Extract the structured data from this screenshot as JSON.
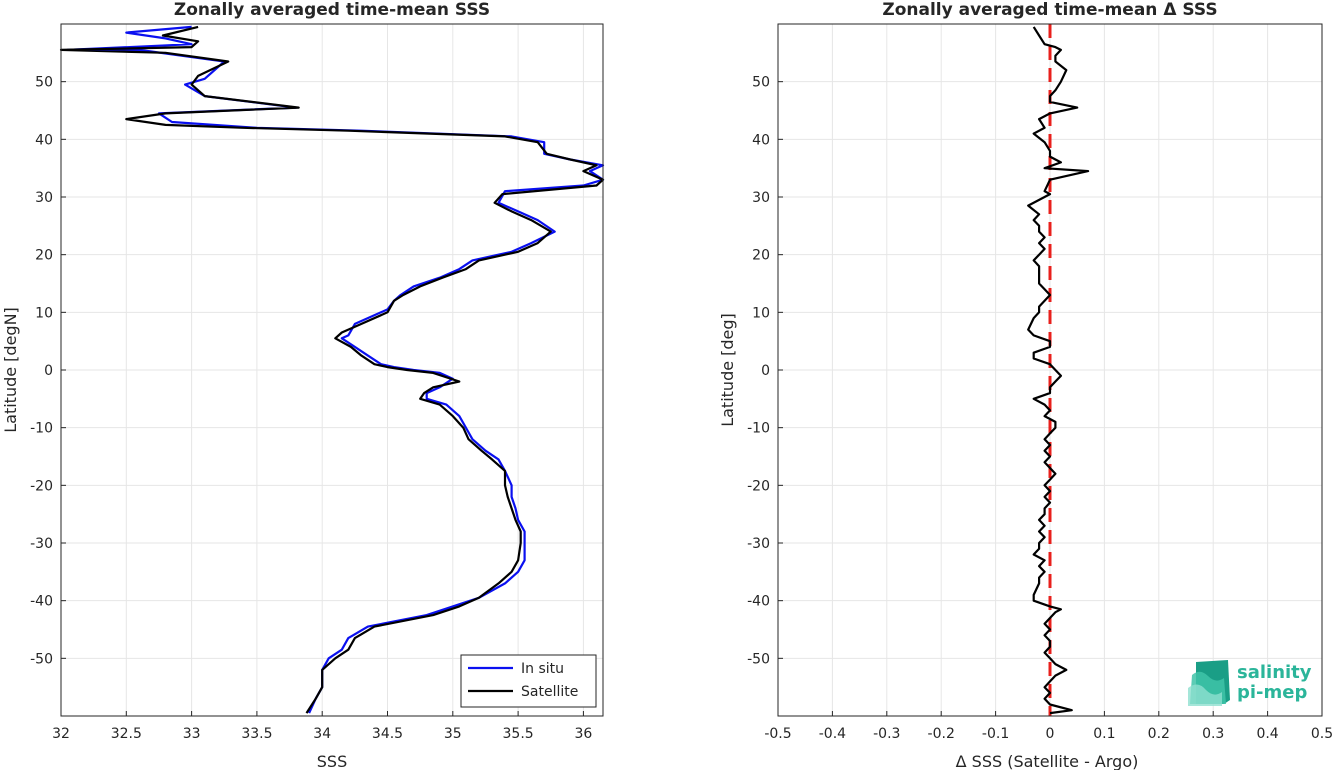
{
  "chart_data": [
    {
      "type": "line",
      "title": "Zonally averaged time-mean SSS",
      "xlabel": "SSS",
      "ylabel": "Latitude [degN]",
      "xlim": [
        32,
        36.15
      ],
      "ylim": [
        -60,
        60
      ],
      "xticks": [
        32,
        32.5,
        33,
        33.5,
        34,
        34.5,
        35,
        35.5,
        36
      ],
      "yticks": [
        -50,
        -40,
        -30,
        -20,
        -10,
        0,
        10,
        20,
        30,
        40,
        50
      ],
      "grid": true,
      "legend_position": "bottom-right",
      "series": [
        {
          "name": "In situ",
          "color": "#0a10f0",
          "points": [
            [
              33.9,
              -59.5
            ],
            [
              33.95,
              -57
            ],
            [
              34.0,
              -55
            ],
            [
              34.0,
              -52
            ],
            [
              34.05,
              -50
            ],
            [
              34.15,
              -48.5
            ],
            [
              34.2,
              -46.5
            ],
            [
              34.35,
              -44.5
            ],
            [
              34.8,
              -42.5
            ],
            [
              35.0,
              -41
            ],
            [
              35.2,
              -39.5
            ],
            [
              35.4,
              -37
            ],
            [
              35.5,
              -35
            ],
            [
              35.55,
              -33
            ],
            [
              35.55,
              -30
            ],
            [
              35.55,
              -28
            ],
            [
              35.5,
              -26
            ],
            [
              35.48,
              -24
            ],
            [
              35.45,
              -22
            ],
            [
              35.45,
              -20
            ],
            [
              35.4,
              -17.5
            ],
            [
              35.35,
              -15.5
            ],
            [
              35.25,
              -14
            ],
            [
              35.15,
              -12
            ],
            [
              35.1,
              -10
            ],
            [
              35.05,
              -8
            ],
            [
              34.95,
              -6
            ],
            [
              34.8,
              -5
            ],
            [
              34.8,
              -4
            ],
            [
              34.9,
              -3
            ],
            [
              35.0,
              -1.5
            ],
            [
              34.9,
              -0.5
            ],
            [
              34.7,
              0
            ],
            [
              34.55,
              0.5
            ],
            [
              34.45,
              1
            ],
            [
              34.35,
              2.5
            ],
            [
              34.25,
              4
            ],
            [
              34.15,
              5.5
            ],
            [
              34.2,
              6
            ],
            [
              34.25,
              8
            ],
            [
              34.5,
              10.5
            ],
            [
              34.55,
              12
            ],
            [
              34.6,
              13
            ],
            [
              34.7,
              14.5
            ],
            [
              34.9,
              16
            ],
            [
              35.05,
              17.5
            ],
            [
              35.15,
              19
            ],
            [
              35.45,
              20.5
            ],
            [
              35.6,
              22
            ],
            [
              35.78,
              24
            ],
            [
              35.65,
              26
            ],
            [
              35.5,
              27.5
            ],
            [
              35.35,
              29
            ],
            [
              35.4,
              31
            ],
            [
              36.0,
              32
            ],
            [
              36.15,
              33
            ],
            [
              36.05,
              34.5
            ],
            [
              36.15,
              35.5
            ],
            [
              35.9,
              36.5
            ],
            [
              35.7,
              37.5
            ],
            [
              35.7,
              39.5
            ],
            [
              35.45,
              40.5
            ],
            [
              34.3,
              41.5
            ],
            [
              33.5,
              42
            ],
            [
              32.85,
              43
            ],
            [
              32.75,
              44.5
            ],
            [
              33.8,
              45.5
            ],
            [
              33.1,
              47.5
            ],
            [
              32.95,
              49.5
            ],
            [
              33.1,
              50.5
            ],
            [
              33.25,
              53.5
            ],
            [
              32.6,
              55.5
            ],
            [
              32.05,
              55.5
            ],
            [
              33.0,
              56.5
            ],
            [
              32.8,
              57.5
            ],
            [
              32.5,
              58.5
            ],
            [
              33.0,
              59.5
            ]
          ]
        },
        {
          "name": "Satellite",
          "color": "#000000",
          "points": [
            [
              33.88,
              -59.5
            ],
            [
              33.95,
              -57
            ],
            [
              34.0,
              -55
            ],
            [
              34.0,
              -52
            ],
            [
              34.1,
              -50
            ],
            [
              34.2,
              -48.5
            ],
            [
              34.25,
              -46.5
            ],
            [
              34.4,
              -44.5
            ],
            [
              34.85,
              -42.5
            ],
            [
              35.05,
              -41
            ],
            [
              35.2,
              -39.5
            ],
            [
              35.35,
              -37
            ],
            [
              35.45,
              -35
            ],
            [
              35.5,
              -33
            ],
            [
              35.52,
              -30
            ],
            [
              35.52,
              -28
            ],
            [
              35.48,
              -26
            ],
            [
              35.45,
              -24
            ],
            [
              35.42,
              -22
            ],
            [
              35.4,
              -20
            ],
            [
              35.4,
              -17.5
            ],
            [
              35.3,
              -15.5
            ],
            [
              35.22,
              -14
            ],
            [
              35.12,
              -12
            ],
            [
              35.08,
              -10
            ],
            [
              35.0,
              -8
            ],
            [
              34.9,
              -6
            ],
            [
              34.75,
              -5
            ],
            [
              34.78,
              -4
            ],
            [
              34.85,
              -3
            ],
            [
              35.05,
              -2
            ],
            [
              34.85,
              -0.5
            ],
            [
              34.65,
              0
            ],
            [
              34.5,
              0.5
            ],
            [
              34.4,
              1
            ],
            [
              34.3,
              2.5
            ],
            [
              34.22,
              4
            ],
            [
              34.1,
              5.5
            ],
            [
              34.15,
              6.5
            ],
            [
              34.3,
              8
            ],
            [
              34.5,
              10
            ],
            [
              34.55,
              12
            ],
            [
              34.62,
              13
            ],
            [
              34.75,
              14.5
            ],
            [
              34.92,
              16
            ],
            [
              35.1,
              17.5
            ],
            [
              35.2,
              19
            ],
            [
              35.5,
              20.5
            ],
            [
              35.65,
              22
            ],
            [
              35.75,
              24
            ],
            [
              35.6,
              26
            ],
            [
              35.45,
              27.5
            ],
            [
              35.32,
              29
            ],
            [
              35.38,
              30.5
            ],
            [
              36.1,
              32
            ],
            [
              36.15,
              33
            ],
            [
              36.0,
              34.5
            ],
            [
              36.1,
              35.5
            ],
            [
              35.9,
              36.5
            ],
            [
              35.72,
              37.5
            ],
            [
              35.65,
              39.5
            ],
            [
              35.4,
              40.5
            ],
            [
              34.2,
              41.5
            ],
            [
              33.4,
              42
            ],
            [
              32.8,
              42.5
            ],
            [
              32.5,
              43.5
            ],
            [
              32.8,
              44.5
            ],
            [
              33.82,
              45.5
            ],
            [
              33.1,
              47.5
            ],
            [
              33.0,
              49.5
            ],
            [
              33.05,
              51
            ],
            [
              33.28,
              53.5
            ],
            [
              32.8,
              55
            ],
            [
              32.0,
              55.5
            ],
            [
              33.0,
              56
            ],
            [
              33.05,
              57
            ],
            [
              32.78,
              58
            ],
            [
              33.05,
              59.5
            ]
          ]
        }
      ]
    },
    {
      "type": "line",
      "title": "Zonally averaged time-mean Δ SSS",
      "xlabel": "Δ SSS (Satellite - Argo)",
      "ylabel": "Latitude [deg]",
      "xlim": [
        -0.5,
        0.5
      ],
      "ylim": [
        -60,
        60
      ],
      "xticks": [
        -0.5,
        -0.4,
        -0.3,
        -0.2,
        -0.1,
        0,
        0.1,
        0.2,
        0.3,
        0.4,
        0.5
      ],
      "yticks": [
        -50,
        -40,
        -30,
        -20,
        -10,
        0,
        10,
        20,
        30,
        40,
        50
      ],
      "grid": true,
      "reference_line": {
        "x": 0,
        "color": "#e8201c",
        "style": "dashed"
      },
      "series": [
        {
          "name": "",
          "color": "#000000",
          "points": [
            [
              0.0,
              -59.5
            ],
            [
              0.04,
              -59
            ],
            [
              0.0,
              -58
            ],
            [
              -0.01,
              -57
            ],
            [
              0.0,
              -56
            ],
            [
              -0.01,
              -55
            ],
            [
              0.0,
              -54
            ],
            [
              0.01,
              -53
            ],
            [
              0.03,
              -52
            ],
            [
              0.01,
              -51
            ],
            [
              0.0,
              -50
            ],
            [
              -0.01,
              -49
            ],
            [
              0.0,
              -48
            ],
            [
              0.0,
              -47
            ],
            [
              -0.01,
              -46
            ],
            [
              0.0,
              -45
            ],
            [
              -0.01,
              -44
            ],
            [
              0.0,
              -43
            ],
            [
              0.01,
              -42
            ],
            [
              0.02,
              -41.5
            ],
            [
              0.0,
              -41
            ],
            [
              -0.03,
              -40
            ],
            [
              -0.03,
              -39
            ],
            [
              -0.02,
              -37
            ],
            [
              -0.02,
              -36
            ],
            [
              -0.01,
              -35
            ],
            [
              -0.02,
              -34
            ],
            [
              -0.01,
              -33
            ],
            [
              -0.03,
              -32
            ],
            [
              -0.02,
              -31
            ],
            [
              -0.02,
              -30
            ],
            [
              -0.01,
              -29
            ],
            [
              -0.02,
              -28
            ],
            [
              -0.01,
              -27
            ],
            [
              -0.02,
              -26
            ],
            [
              -0.01,
              -25
            ],
            [
              -0.01,
              -24
            ],
            [
              0.0,
              -23
            ],
            [
              -0.01,
              -22
            ],
            [
              0.0,
              -21
            ],
            [
              -0.01,
              -20
            ],
            [
              0.0,
              -19
            ],
            [
              0.01,
              -18
            ],
            [
              0.0,
              -17
            ],
            [
              -0.01,
              -16
            ],
            [
              0.0,
              -15
            ],
            [
              -0.01,
              -14
            ],
            [
              0.0,
              -13
            ],
            [
              -0.01,
              -12
            ],
            [
              0.0,
              -11
            ],
            [
              0.01,
              -10
            ],
            [
              0.01,
              -9
            ],
            [
              -0.01,
              -8
            ],
            [
              0.0,
              -7
            ],
            [
              -0.01,
              -6
            ],
            [
              -0.03,
              -5
            ],
            [
              0.0,
              -4
            ],
            [
              0.0,
              -3
            ],
            [
              0.01,
              -2
            ],
            [
              0.02,
              -1
            ],
            [
              0.01,
              0
            ],
            [
              0.0,
              1
            ],
            [
              -0.03,
              2
            ],
            [
              -0.03,
              3
            ],
            [
              0.0,
              4
            ],
            [
              0.0,
              5
            ],
            [
              -0.03,
              6
            ],
            [
              -0.04,
              7
            ],
            [
              -0.03,
              9
            ],
            [
              -0.02,
              10
            ],
            [
              -0.02,
              11
            ],
            [
              -0.01,
              12
            ],
            [
              0.0,
              13
            ],
            [
              -0.01,
              14
            ],
            [
              -0.02,
              15
            ],
            [
              -0.02,
              17
            ],
            [
              -0.02,
              18
            ],
            [
              -0.03,
              19
            ],
            [
              -0.02,
              20
            ],
            [
              -0.01,
              21
            ],
            [
              -0.02,
              22
            ],
            [
              -0.01,
              23
            ],
            [
              -0.02,
              24
            ],
            [
              -0.02,
              25
            ],
            [
              -0.03,
              26
            ],
            [
              -0.02,
              27
            ],
            [
              -0.04,
              28.5
            ],
            [
              -0.02,
              29.5
            ],
            [
              0.0,
              30.5
            ],
            [
              -0.01,
              31
            ],
            [
              0.0,
              33
            ],
            [
              0.07,
              34.5
            ],
            [
              -0.01,
              35
            ],
            [
              0.02,
              36
            ],
            [
              0.0,
              37
            ],
            [
              0.0,
              38
            ],
            [
              -0.01,
              39.5
            ],
            [
              -0.03,
              41
            ],
            [
              -0.01,
              42
            ],
            [
              -0.02,
              43.5
            ],
            [
              0.0,
              44.5
            ],
            [
              0.05,
              45.5
            ],
            [
              0.0,
              46.5
            ],
            [
              0.0,
              47.5
            ],
            [
              0.01,
              48.5
            ],
            [
              0.02,
              50
            ],
            [
              0.03,
              52
            ],
            [
              0.01,
              53.5
            ],
            [
              0.01,
              54.5
            ],
            [
              0.02,
              55.5
            ],
            [
              0.01,
              56
            ],
            [
              -0.01,
              56.5
            ],
            [
              -0.02,
              58
            ],
            [
              -0.03,
              59.5
            ]
          ]
        }
      ]
    }
  ],
  "logo": {
    "line1": "salinity",
    "line2": "pi-mep",
    "color": "#2bb59a"
  }
}
